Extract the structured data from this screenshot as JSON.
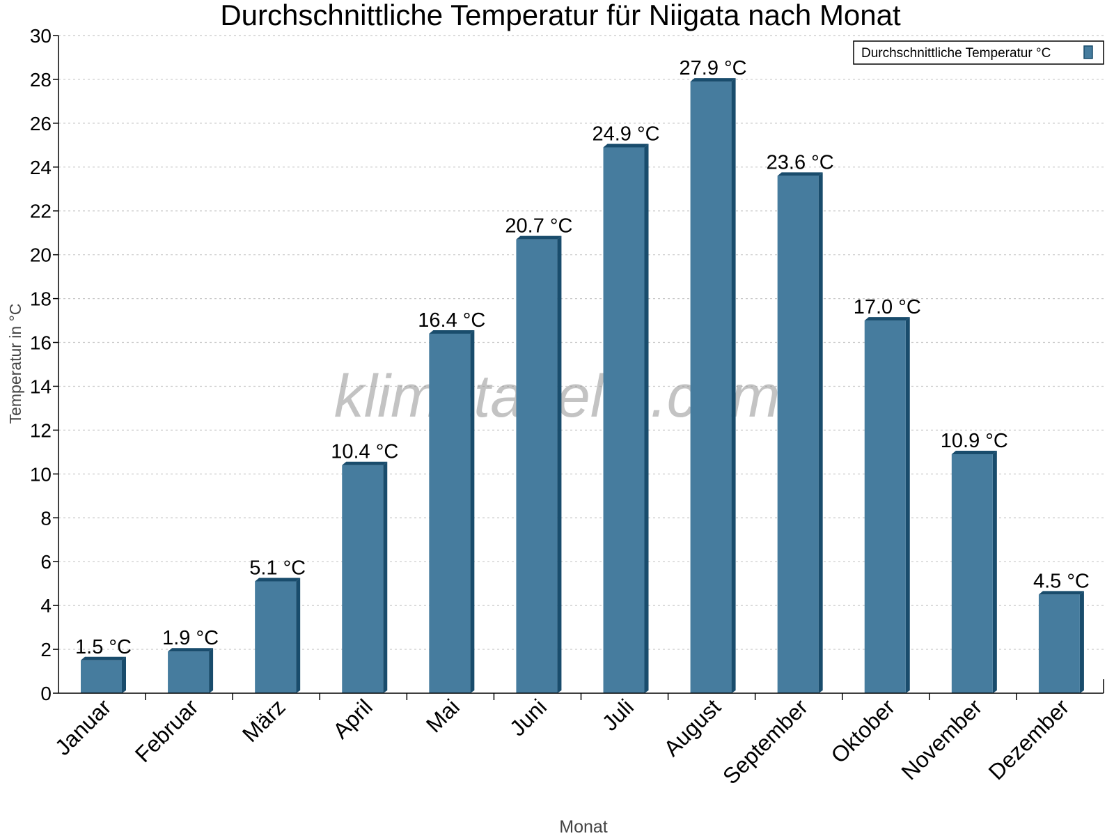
{
  "chart_data": {
    "type": "bar",
    "title": "Durchschnittliche Temperatur für Niigata nach Monat",
    "xlabel": "Monat",
    "ylabel": "Temperatur in °C",
    "categories": [
      "Januar",
      "Februar",
      "März",
      "April",
      "Mai",
      "Juni",
      "Juli",
      "August",
      "September",
      "Oktober",
      "November",
      "Dezember"
    ],
    "series": [
      {
        "name": "Durchschnittliche Temperatur °C",
        "values": [
          1.5,
          1.9,
          5.1,
          10.4,
          16.4,
          20.7,
          24.9,
          27.9,
          23.6,
          17.0,
          10.9,
          4.5
        ],
        "labels": [
          "1.5 °C",
          "1.9 °C",
          "5.1 °C",
          "10.4 °C",
          "16.4 °C",
          "20.7 °C",
          "24.9 °C",
          "27.9 °C",
          "23.6 °C",
          "17.0 °C",
          "10.9 °C",
          "4.5 °C"
        ]
      }
    ],
    "ylim": [
      0,
      30
    ],
    "yticks": [
      0,
      2,
      4,
      6,
      8,
      10,
      12,
      14,
      16,
      18,
      20,
      22,
      24,
      26,
      28,
      30
    ],
    "grid": true,
    "legend": "top-right",
    "colors": {
      "bar_face": "#467c9e",
      "bar_edge": "#194c6c"
    },
    "watermark": "klimatabelle.com"
  }
}
